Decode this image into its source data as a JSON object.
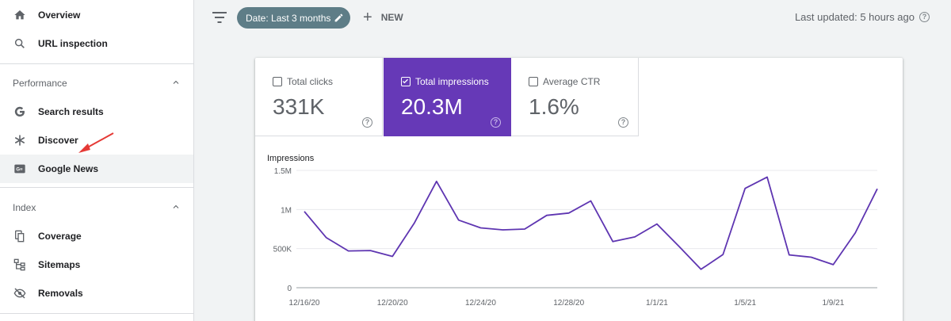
{
  "sidebar": {
    "top_items": [
      {
        "label": "Overview",
        "icon": "home-icon"
      },
      {
        "label": "URL inspection",
        "icon": "search-icon"
      }
    ],
    "sections": [
      {
        "title": "Performance",
        "items": [
          {
            "label": "Search results",
            "icon": "google-g-icon"
          },
          {
            "label": "Discover",
            "icon": "asterisk-icon"
          },
          {
            "label": "Google News",
            "icon": "google-news-icon",
            "active": true
          }
        ]
      },
      {
        "title": "Index",
        "items": [
          {
            "label": "Coverage",
            "icon": "coverage-icon"
          },
          {
            "label": "Sitemaps",
            "icon": "sitemap-icon"
          },
          {
            "label": "Removals",
            "icon": "removals-icon"
          }
        ]
      }
    ],
    "news_icon_text": "G≡"
  },
  "toolbar": {
    "date_chip": "Date: Last 3 months",
    "new_label": "NEW",
    "last_updated": "Last updated: 5 hours ago"
  },
  "metrics": [
    {
      "label": "Total clicks",
      "value": "331K",
      "checked": false
    },
    {
      "label": "Total impressions",
      "value": "20.3M",
      "checked": true
    },
    {
      "label": "Average CTR",
      "value": "1.6%",
      "checked": false
    }
  ],
  "colors": {
    "accent": "#6639b7",
    "line": "#5e35b1",
    "chip": "#5e7d87",
    "annotation_arrow": "#e53935"
  },
  "chart_data": {
    "type": "line",
    "ylabel": "Impressions",
    "ylim": [
      0,
      1500000
    ],
    "y_ticks": [
      {
        "value": 0,
        "label": "0"
      },
      {
        "value": 500000,
        "label": "500K"
      },
      {
        "value": 1000000,
        "label": "1M"
      },
      {
        "value": 1500000,
        "label": "1.5M"
      }
    ],
    "x_labels": [
      "12/16/20",
      "12/20/20",
      "12/24/20",
      "12/28/20",
      "1/1/21",
      "1/5/21",
      "1/9/21"
    ],
    "x_label_indices": [
      0,
      4,
      8,
      12,
      16,
      20,
      24
    ],
    "grid": true,
    "series": [
      {
        "values": [
          975000,
          640000,
          470000,
          475000,
          400000,
          830000,
          1360000,
          865000,
          765000,
          740000,
          750000,
          925000,
          955000,
          1110000,
          590000,
          650000,
          815000,
          530000,
          235000,
          425000,
          1270000,
          1415000,
          420000,
          390000,
          295000,
          700000,
          1265000
        ]
      }
    ]
  }
}
